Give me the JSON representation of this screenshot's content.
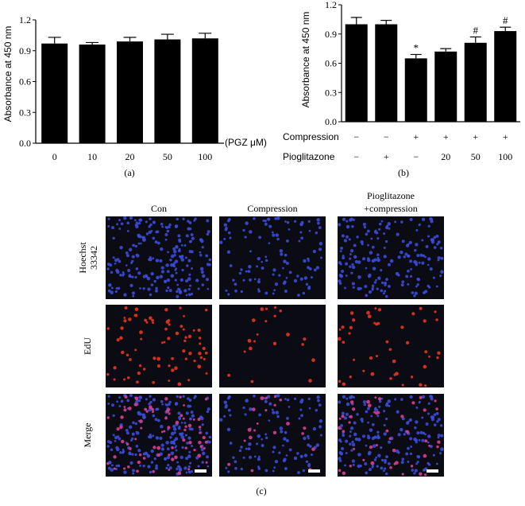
{
  "chart_data": [
    {
      "panel": "(a)",
      "type": "bar",
      "ylabel": "Absorbance at 450 nm",
      "xlabel": "",
      "x_unit_label": "(PGZ μM)",
      "ylim": [
        0,
        1.2
      ],
      "yticks": [
        "0.0",
        "0.3",
        "0.6",
        "0.9",
        "1.2"
      ],
      "categories": [
        "0",
        "10",
        "20",
        "50",
        "100"
      ],
      "values": [
        0.97,
        0.96,
        0.99,
        1.01,
        1.02
      ],
      "errors": [
        0.06,
        0.02,
        0.04,
        0.05,
        0.05
      ]
    },
    {
      "panel": "(b)",
      "type": "bar",
      "ylabel": "Absorbance at 450 nm",
      "ylim": [
        0,
        1.2
      ],
      "yticks": [
        "0.0",
        "0.3",
        "0.6",
        "0.9",
        "1.2"
      ],
      "values": [
        1.0,
        1.0,
        0.65,
        0.72,
        0.81,
        0.93
      ],
      "errors": [
        0.07,
        0.04,
        0.04,
        0.03,
        0.06,
        0.04
      ],
      "annotations": [
        "",
        "",
        "*",
        "",
        "#",
        "#"
      ],
      "row_labels": [
        "Compression",
        "Pioglitazone"
      ],
      "compression": [
        "−",
        "−",
        "+",
        "+",
        "+",
        "+"
      ],
      "pioglitazone": [
        "−",
        "+",
        "−",
        "20",
        "50",
        "100"
      ]
    }
  ],
  "panel_c": {
    "label": "(c)",
    "columns": [
      "Con",
      "Compression",
      "Pioglitazone\n+compression"
    ],
    "column_line1": [
      "Con",
      "Compression",
      "Pioglitazone"
    ],
    "column_line2": [
      "",
      "",
      "+compression"
    ],
    "rows": [
      "Hoechst 33342",
      "EdU",
      "Merge"
    ],
    "row_line1": [
      "Hoechst",
      "EdU",
      "Merge"
    ],
    "row_line2": [
      "33342",
      "",
      ""
    ],
    "densities": {
      "hoechst": [
        220,
        110,
        180
      ],
      "edu": [
        75,
        20,
        45
      ]
    },
    "colors": {
      "background": "#0b0b14",
      "hoechst": "#3a4bd8",
      "edu": "#e0321e",
      "merge": "#d23c8c",
      "scalebar": "#ffffff"
    }
  }
}
